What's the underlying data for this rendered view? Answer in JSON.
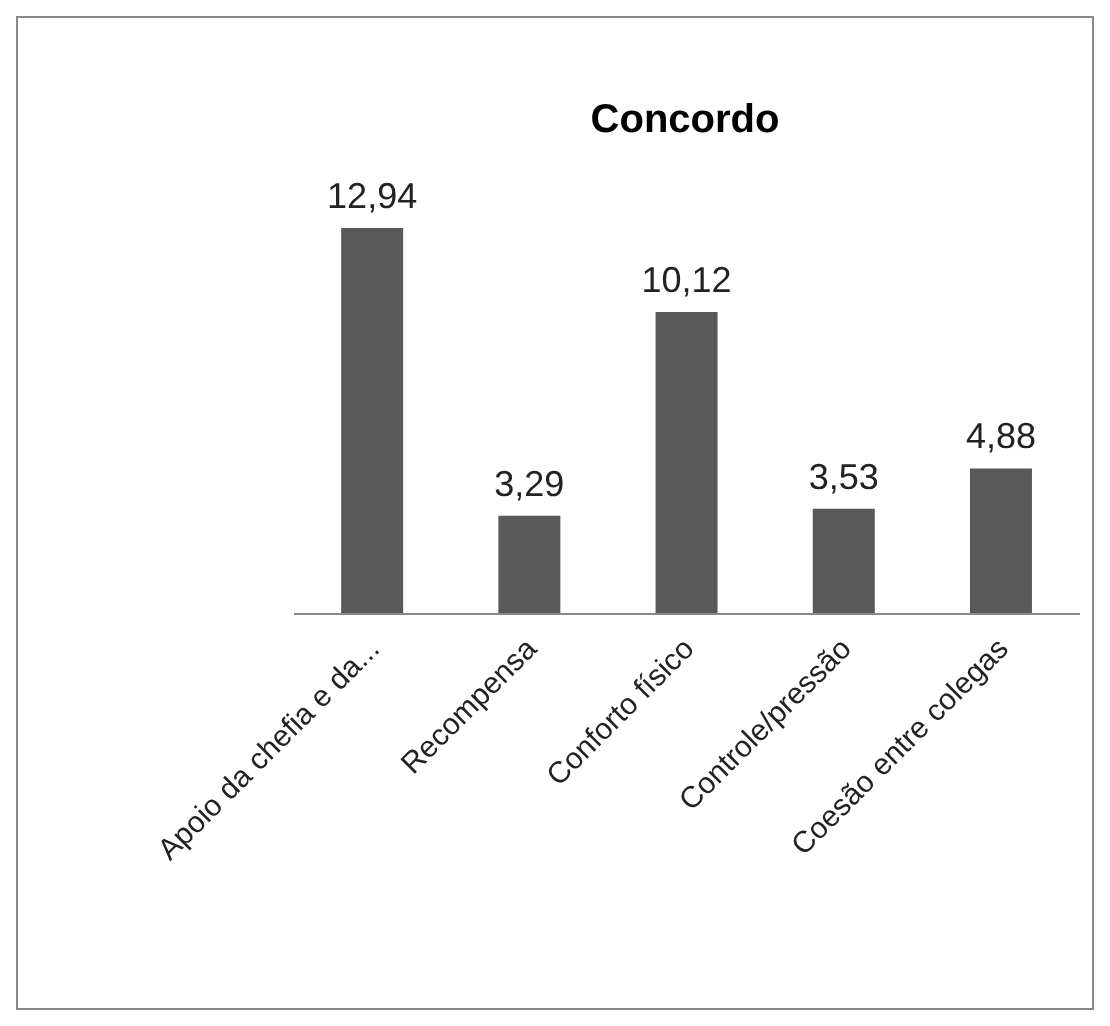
{
  "chart_data": {
    "type": "bar",
    "title": "Concordo",
    "categories": [
      "Apoio da chefia e da...",
      "Recompensa",
      "Conforto físico",
      "Controle/pressão",
      "Coesão entre colegas"
    ],
    "values": [
      12.94,
      3.29,
      10.12,
      3.53,
      4.88
    ],
    "value_labels": [
      "12,94",
      "3,29",
      "10,12",
      "3,53",
      "4,88"
    ],
    "color": "#595959",
    "grid": false,
    "legend": false
  }
}
